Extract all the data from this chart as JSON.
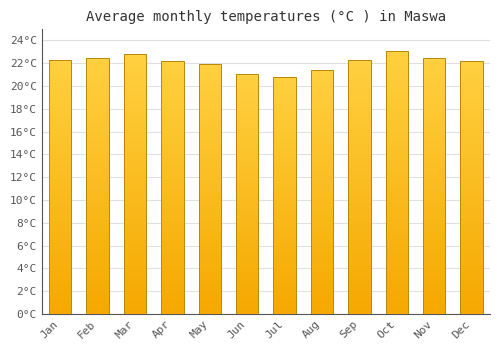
{
  "months": [
    "Jan",
    "Feb",
    "Mar",
    "Apr",
    "May",
    "Jun",
    "Jul",
    "Aug",
    "Sep",
    "Oct",
    "Nov",
    "Dec"
  ],
  "temperatures": [
    22.3,
    22.5,
    22.8,
    22.2,
    21.9,
    21.1,
    20.8,
    21.4,
    22.3,
    23.1,
    22.5,
    22.2
  ],
  "bar_color_bottom": "#F5A800",
  "bar_color_top": "#FFD040",
  "bar_edge_color": "#B8860B",
  "title": "Average monthly temperatures (°C ) in Maswa",
  "ylim": [
    0,
    25
  ],
  "yticks": [
    0,
    2,
    4,
    6,
    8,
    10,
    12,
    14,
    16,
    18,
    20,
    22,
    24
  ],
  "ytick_labels": [
    "0°C",
    "2°C",
    "4°C",
    "6°C",
    "8°C",
    "10°C",
    "12°C",
    "14°C",
    "16°C",
    "18°C",
    "20°C",
    "22°C",
    "24°C"
  ],
  "background_color": "#FFFFFF",
  "plot_bg_color": "#FFFFFF",
  "grid_color": "#E0E0E0",
  "title_fontsize": 10,
  "tick_fontsize": 8,
  "font_family": "monospace",
  "bar_width": 0.6
}
